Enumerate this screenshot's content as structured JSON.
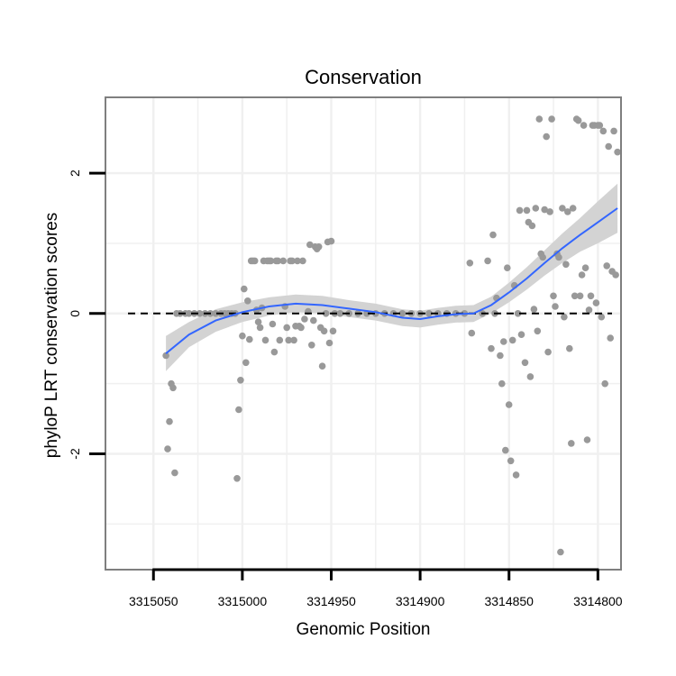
{
  "chart_data": {
    "type": "scatter",
    "title": "Conservation",
    "xlabel": "Genomic Position",
    "ylabel": "phyloP LRT conservation scores",
    "x_reversed": true,
    "xlim": [
      3315077,
      3314787
    ],
    "ylim": [
      -3.65,
      3.08
    ],
    "x_ticks": [
      3315050,
      3315000,
      3314950,
      3314900,
      3314850,
      3314800
    ],
    "x_tick_labels": [
      "3315050",
      "3315000",
      "3314950",
      "3314900",
      "3314850",
      "3314800"
    ],
    "y_ticks": [
      -2,
      0,
      2
    ],
    "y_tick_labels": [
      "-2",
      "0",
      "2"
    ],
    "y_minor_grid": [
      -3,
      -1,
      1
    ],
    "x_minor_grid": [
      3315025,
      3314975,
      3314925,
      3314875,
      3314825
    ],
    "reference_line": {
      "y": 0,
      "style": "dashed"
    },
    "colors": {
      "points": "#999999",
      "smooth": "#3366FF",
      "ribbon": "#D3D3D3",
      "panel_border": "#7F7F7F",
      "grid": "#F0F0F0"
    },
    "points": [
      [
        3315043,
        -0.6
      ],
      [
        3315042,
        -1.93
      ],
      [
        3315041,
        -1.54
      ],
      [
        3315040,
        -1.0
      ],
      [
        3315039,
        -1.06
      ],
      [
        3315038,
        -2.27
      ],
      [
        3315037,
        0
      ],
      [
        3315035,
        0
      ],
      [
        3315032,
        0
      ],
      [
        3315030,
        0
      ],
      [
        3315027,
        0
      ],
      [
        3315024,
        0
      ],
      [
        3315021,
        0
      ],
      [
        3315018,
        0
      ],
      [
        3315015,
        0
      ],
      [
        3315012,
        0
      ],
      [
        3315010,
        0
      ],
      [
        3315008,
        0
      ],
      [
        3315006,
        0
      ],
      [
        3315004,
        0
      ],
      [
        3315003,
        -2.35
      ],
      [
        3315002,
        -1.37
      ],
      [
        3315001,
        -0.95
      ],
      [
        3315000,
        -0.32
      ],
      [
        3314999,
        0.35
      ],
      [
        3314998,
        -0.7
      ],
      [
        3314997,
        0.18
      ],
      [
        3314996,
        -0.37
      ],
      [
        3314995,
        0.75
      ],
      [
        3314994,
        0.75
      ],
      [
        3314993,
        0.75
      ],
      [
        3314992,
        0.05
      ],
      [
        3314991,
        -0.12
      ],
      [
        3314990,
        -0.2
      ],
      [
        3314989,
        0.08
      ],
      [
        3314988,
        0.75
      ],
      [
        3314987,
        -0.38
      ],
      [
        3314986,
        0.75
      ],
      [
        3314985,
        0.75
      ],
      [
        3314984,
        0.75
      ],
      [
        3314983,
        -0.15
      ],
      [
        3314982,
        -0.55
      ],
      [
        3314981,
        0.75
      ],
      [
        3314980,
        0.75
      ],
      [
        3314979,
        -0.38
      ],
      [
        3314977,
        0.75
      ],
      [
        3314976,
        0.1
      ],
      [
        3314975,
        -0.2
      ],
      [
        3314974,
        -0.38
      ],
      [
        3314973,
        0.75
      ],
      [
        3314972,
        0.75
      ],
      [
        3314971,
        -0.38
      ],
      [
        3314970,
        -0.18
      ],
      [
        3314969,
        0.75
      ],
      [
        3314968,
        -0.18
      ],
      [
        3314967,
        -0.2
      ],
      [
        3314966,
        0.75
      ],
      [
        3314965,
        -0.08
      ],
      [
        3314963,
        0.03
      ],
      [
        3314962,
        0.98
      ],
      [
        3314961,
        -0.45
      ],
      [
        3314960,
        -0.1
      ],
      [
        3314959,
        0.95
      ],
      [
        3314958,
        0.92
      ],
      [
        3314957,
        0.95
      ],
      [
        3314956,
        -0.2
      ],
      [
        3314955,
        -0.75
      ],
      [
        3314954,
        -0.25
      ],
      [
        3314953,
        0
      ],
      [
        3314952,
        1.02
      ],
      [
        3314951,
        -0.42
      ],
      [
        3314950,
        1.03
      ],
      [
        3314949,
        -0.25
      ],
      [
        3314948,
        0
      ],
      [
        3314945,
        0
      ],
      [
        3314940,
        0
      ],
      [
        3314935,
        0
      ],
      [
        3314930,
        0
      ],
      [
        3314925,
        0
      ],
      [
        3314920,
        0
      ],
      [
        3314915,
        0
      ],
      [
        3314910,
        0
      ],
      [
        3314905,
        0
      ],
      [
        3314900,
        0
      ],
      [
        3314895,
        0
      ],
      [
        3314890,
        0
      ],
      [
        3314885,
        0
      ],
      [
        3314880,
        0
      ],
      [
        3314875,
        0
      ],
      [
        3314872,
        0.72
      ],
      [
        3314871,
        -0.28
      ],
      [
        3314865,
        0
      ],
      [
        3314862,
        0.75
      ],
      [
        3314860,
        -0.5
      ],
      [
        3314859,
        1.12
      ],
      [
        3314858,
        0
      ],
      [
        3314857,
        0.22
      ],
      [
        3314855,
        -0.6
      ],
      [
        3314854,
        -1.0
      ],
      [
        3314853,
        -0.4
      ],
      [
        3314852,
        -1.95
      ],
      [
        3314851,
        0.65
      ],
      [
        3314850,
        -1.3
      ],
      [
        3314849,
        -2.1
      ],
      [
        3314848,
        -0.38
      ],
      [
        3314847,
        0.4
      ],
      [
        3314846,
        -2.3
      ],
      [
        3314845,
        0
      ],
      [
        3314844,
        1.47
      ],
      [
        3314843,
        -0.3
      ],
      [
        3314841,
        -0.7
      ],
      [
        3314840,
        1.47
      ],
      [
        3314839,
        1.3
      ],
      [
        3314838,
        -0.9
      ],
      [
        3314837,
        1.25
      ],
      [
        3314836,
        0.06
      ],
      [
        3314835,
        1.5
      ],
      [
        3314834,
        -0.25
      ],
      [
        3314833,
        2.77
      ],
      [
        3314832,
        0.85
      ],
      [
        3314831,
        0.8
      ],
      [
        3314830,
        1.48
      ],
      [
        3314829,
        2.52
      ],
      [
        3314828,
        -0.55
      ],
      [
        3314827,
        1.45
      ],
      [
        3314826,
        2.77
      ],
      [
        3314825,
        0.25
      ],
      [
        3314824,
        0.1
      ],
      [
        3314823,
        0.85
      ],
      [
        3314822,
        0.8
      ],
      [
        3314821,
        -3.4
      ],
      [
        3314820,
        1.5
      ],
      [
        3314819,
        -0.05
      ],
      [
        3314818,
        0.7
      ],
      [
        3314817,
        1.45
      ],
      [
        3314816,
        -0.5
      ],
      [
        3314815,
        -1.85
      ],
      [
        3314814,
        1.5
      ],
      [
        3314813,
        0.25
      ],
      [
        3314812,
        2.77
      ],
      [
        3314811,
        2.75
      ],
      [
        3314810,
        0.25
      ],
      [
        3314809,
        0.55
      ],
      [
        3314808,
        2.68
      ],
      [
        3314807,
        0.65
      ],
      [
        3314806,
        -1.8
      ],
      [
        3314805,
        0.05
      ],
      [
        3314804,
        0.25
      ],
      [
        3314803,
        2.68
      ],
      [
        3314802,
        2.68
      ],
      [
        3314801,
        0.15
      ],
      [
        3314800,
        2.68
      ],
      [
        3314799,
        2.68
      ],
      [
        3314798,
        -0.05
      ],
      [
        3314797,
        2.6
      ],
      [
        3314796,
        -1.0
      ],
      [
        3314795,
        0.68
      ],
      [
        3314794,
        2.38
      ],
      [
        3314793,
        -0.35
      ],
      [
        3314792,
        0.6
      ],
      [
        3314791,
        2.6
      ],
      [
        3314790,
        0.55
      ],
      [
        3314789,
        2.3
      ]
    ],
    "smooth": {
      "method": "loess",
      "line": [
        [
          3315043,
          -0.57
        ],
        [
          3315030,
          -0.3
        ],
        [
          3315015,
          -0.1
        ],
        [
          3315000,
          0.02
        ],
        [
          3314985,
          0.1
        ],
        [
          3314970,
          0.14
        ],
        [
          3314955,
          0.12
        ],
        [
          3314940,
          0.07
        ],
        [
          3314925,
          0.02
        ],
        [
          3314910,
          -0.06
        ],
        [
          3314900,
          -0.08
        ],
        [
          3314890,
          -0.04
        ],
        [
          3314880,
          -0.01
        ],
        [
          3314870,
          0.0
        ],
        [
          3314860,
          0.12
        ],
        [
          3314850,
          0.3
        ],
        [
          3314840,
          0.5
        ],
        [
          3314830,
          0.72
        ],
        [
          3314820,
          0.93
        ],
        [
          3314810,
          1.12
        ],
        [
          3314800,
          1.3
        ],
        [
          3314789,
          1.5
        ]
      ],
      "ribbon": [
        [
          3315043,
          -0.82,
          -0.32
        ],
        [
          3315030,
          -0.48,
          -0.12
        ],
        [
          3315015,
          -0.26,
          0.06
        ],
        [
          3315000,
          -0.12,
          0.16
        ],
        [
          3314985,
          -0.03,
          0.23
        ],
        [
          3314970,
          0.02,
          0.27
        ],
        [
          3314955,
          0.0,
          0.25
        ],
        [
          3314940,
          -0.05,
          0.19
        ],
        [
          3314925,
          -0.1,
          0.14
        ],
        [
          3314910,
          -0.18,
          0.06
        ],
        [
          3314900,
          -0.2,
          0.04
        ],
        [
          3314890,
          -0.16,
          0.08
        ],
        [
          3314880,
          -0.13,
          0.11
        ],
        [
          3314870,
          -0.12,
          0.12
        ],
        [
          3314860,
          0.0,
          0.24
        ],
        [
          3314850,
          0.16,
          0.44
        ],
        [
          3314840,
          0.34,
          0.66
        ],
        [
          3314830,
          0.54,
          0.9
        ],
        [
          3314820,
          0.72,
          1.14
        ],
        [
          3314810,
          0.88,
          1.36
        ],
        [
          3314800,
          1.0,
          1.6
        ],
        [
          3314789,
          1.15,
          1.85
        ]
      ]
    }
  }
}
